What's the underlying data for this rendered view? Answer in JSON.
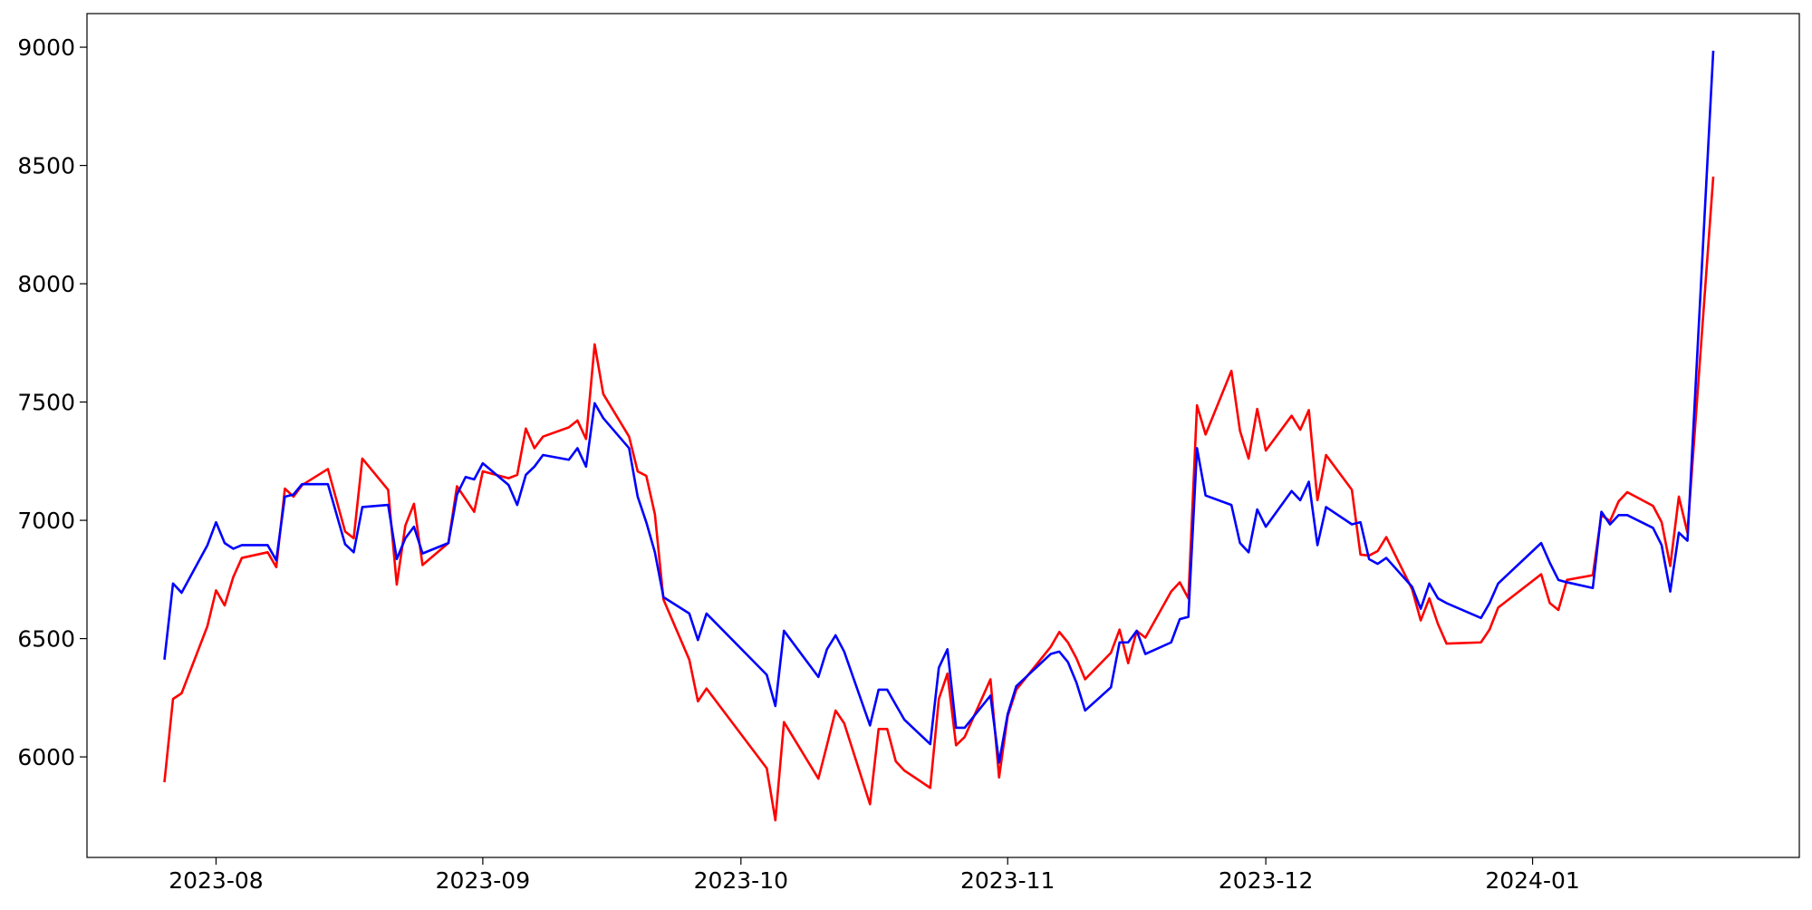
{
  "chart_data": {
    "type": "line",
    "x": [
      19564,
      19565,
      19566,
      19569,
      19570,
      19571,
      19572,
      19573,
      19576,
      19577,
      19578,
      19579,
      19580,
      19583,
      19585,
      19586,
      19587,
      19590,
      19591,
      19592,
      19593,
      19594,
      19597,
      19598,
      19599,
      19600,
      19601,
      19604,
      19605,
      19606,
      19607,
      19608,
      19611,
      19612,
      19613,
      19614,
      19615,
      19618,
      19619,
      19620,
      19621,
      19622,
      19625,
      19626,
      19627,
      19634,
      19635,
      19636,
      19640,
      19641,
      19642,
      19643,
      19646,
      19647,
      19648,
      19649,
      19650,
      19653,
      19654,
      19655,
      19656,
      19657,
      19660,
      19661,
      19662,
      19663,
      19667,
      19668,
      19669,
      19670,
      19671,
      19674,
      19675,
      19676,
      19677,
      19678,
      19681,
      19682,
      19683,
      19684,
      19685,
      19688,
      19689,
      19690,
      19691,
      19692,
      19695,
      19696,
      19697,
      19698,
      19699,
      19702,
      19703,
      19704,
      19705,
      19706,
      19709,
      19710,
      19711,
      19712,
      19713,
      19717,
      19718,
      19719,
      19724,
      19725,
      19726,
      19727,
      19730,
      19731,
      19732,
      19733,
      19734,
      19737,
      19738,
      19739,
      19740,
      19741,
      19744
    ],
    "series": [
      {
        "color": "#ff0000",
        "values": [
          5893,
          6245,
          6269,
          6553,
          6704,
          6640,
          6760,
          6841,
          6865,
          6802,
          7134,
          7100,
          7149,
          7217,
          6953,
          6924,
          7261,
          7129,
          6728,
          6978,
          7070,
          6811,
          6904,
          7144,
          7090,
          7036,
          7207,
          7178,
          7192,
          7388,
          7305,
          7354,
          7393,
          7422,
          7344,
          7744,
          7534,
          7354,
          7207,
          7188,
          7026,
          6665,
          6411,
          6235,
          6289,
          5952,
          5732,
          6147,
          5908,
          6050,
          6196,
          6142,
          5800,
          6118,
          6118,
          5981,
          5942,
          5869,
          6245,
          6352,
          6049,
          6084,
          6328,
          5913,
          6172,
          6284,
          6465,
          6528,
          6484,
          6416,
          6328,
          6440,
          6538,
          6396,
          6533,
          6504,
          6699,
          6738,
          6670,
          7486,
          7363,
          7632,
          7378,
          7261,
          7471,
          7295,
          7442,
          7383,
          7466,
          7085,
          7276,
          7129,
          6855,
          6851,
          6870,
          6929,
          6709,
          6577,
          6670,
          6562,
          6479,
          6484,
          6538,
          6631,
          6772,
          6650,
          6621,
          6748,
          6768,
          7022,
          6997,
          7080,
          7119,
          7061,
          6992,
          6807,
          7100,
          6948,
          8453
        ]
      },
      {
        "color": "#0000ff",
        "values": [
          6411,
          6733,
          6694,
          6895,
          6992,
          6904,
          6880,
          6895,
          6895,
          6831,
          7100,
          7109,
          7153,
          7153,
          6899,
          6865,
          7056,
          7065,
          6836,
          6924,
          6973,
          6860,
          6904,
          7109,
          7183,
          7173,
          7241,
          7149,
          7065,
          7192,
          7227,
          7276,
          7256,
          7305,
          7227,
          7495,
          7432,
          7305,
          7100,
          6992,
          6865,
          6675,
          6606,
          6494,
          6606,
          6347,
          6215,
          6533,
          6338,
          6455,
          6514,
          6445,
          6133,
          6284,
          6284,
          6220,
          6157,
          6054,
          6377,
          6455,
          6123,
          6123,
          6259,
          5976,
          6181,
          6299,
          6435,
          6445,
          6401,
          6313,
          6196,
          6294,
          6484,
          6484,
          6533,
          6435,
          6484,
          6582,
          6592,
          7305,
          7105,
          7065,
          6904,
          6865,
          7046,
          6973,
          7124,
          7085,
          7163,
          6895,
          7056,
          6983,
          6992,
          6836,
          6816,
          6841,
          6719,
          6626,
          6733,
          6670,
          6650,
          6587,
          6650,
          6733,
          6904,
          6821,
          6748,
          6738,
          6714,
          7036,
          6983,
          7022,
          7022,
          6968,
          6895,
          6699,
          6948,
          6914,
          8985
        ]
      }
    ],
    "xlim": [
      19555,
      19754
    ],
    "xticks": [
      {
        "value": 19570,
        "label": "2023-08"
      },
      {
        "value": 19601,
        "label": "2023-09"
      },
      {
        "value": 19631,
        "label": "2023-10"
      },
      {
        "value": 19662,
        "label": "2023-11"
      },
      {
        "value": 19692,
        "label": "2023-12"
      },
      {
        "value": 19723,
        "label": "2024-01"
      }
    ],
    "ylim": [
      5575,
      9142
    ],
    "yticks": [
      6000,
      6500,
      7000,
      7500,
      8000,
      8500,
      9000
    ],
    "grid": false
  }
}
